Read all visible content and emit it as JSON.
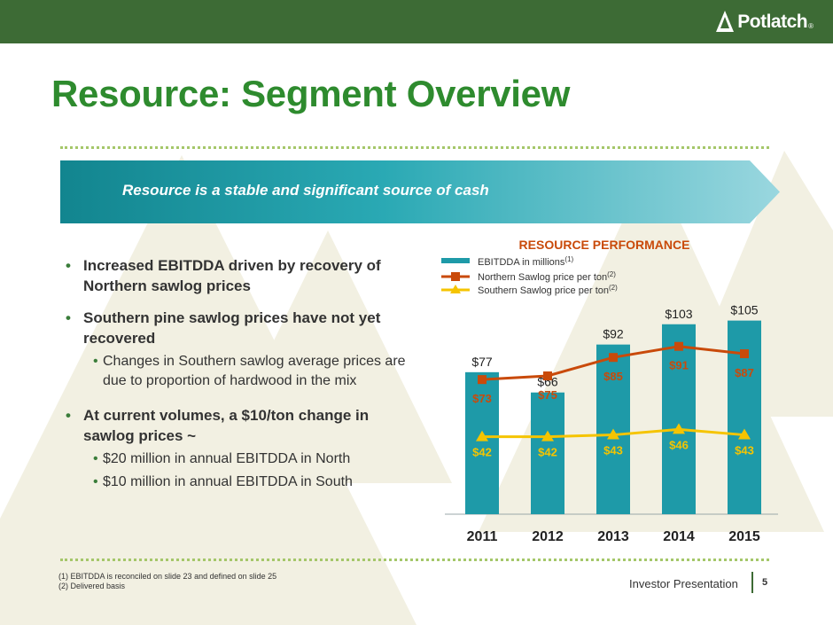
{
  "brand": {
    "name": "Potlatch",
    "mark": "®",
    "green": "#3d6b35",
    "title_green": "#2e8b2e",
    "teal": "#1e9aa8",
    "orange": "#c94a0a",
    "yellow": "#f5c400"
  },
  "slide": {
    "title": "Resource: Segment Overview",
    "banner": "Resource is a stable and significant source of cash",
    "bullets": [
      {
        "text": "Increased EBITDDA driven by recovery of Northern sawlog prices"
      },
      {
        "text": "Southern pine sawlog prices have not yet recovered"
      },
      {
        "text": "Changes in Southern sawlog average prices are due to proportion of hardwood in the mix"
      },
      {
        "text": "At current volumes, a $10/ton change in sawlog prices ~"
      },
      {
        "text": "$20 million in annual EBITDDA in North"
      },
      {
        "text": "$10 million in annual EBITDDA in South"
      }
    ]
  },
  "chart_data": {
    "type": "bar",
    "title": "RESOURCE PERFORMANCE",
    "categories": [
      "2011",
      "2012",
      "2013",
      "2014",
      "2015"
    ],
    "series": [
      {
        "name": "EBITDDA in millions",
        "sup": "(1)",
        "kind": "bar",
        "color": "#1e9aa8",
        "values": [
          77,
          66,
          92,
          103,
          105
        ],
        "labels": [
          "$77",
          "$66",
          "$92",
          "$103",
          "$105"
        ]
      },
      {
        "name": "Northern Sawlog price per ton",
        "sup": "(2)",
        "kind": "line",
        "marker": "square",
        "color": "#c94a0a",
        "values": [
          73,
          75,
          85,
          91,
          87
        ],
        "labels": [
          "$73",
          "$75",
          "$85",
          "$91",
          "$87"
        ]
      },
      {
        "name": "Southern Sawlog price per ton",
        "sup": "(2)",
        "kind": "line",
        "marker": "triangle",
        "color": "#f5c400",
        "values": [
          42,
          42,
          43,
          46,
          43
        ],
        "labels": [
          "$42",
          "$42",
          "$43",
          "$46",
          "$43"
        ]
      }
    ],
    "ylim": [
      0,
      125
    ],
    "grid": false,
    "legend": "top-left"
  },
  "footer": {
    "footnotes": [
      "(1)   EBITDDA is reconciled on slide 23 and defined on slide 25",
      "(2)   Delivered basis"
    ],
    "label": "Investor Presentation",
    "page": "5"
  }
}
